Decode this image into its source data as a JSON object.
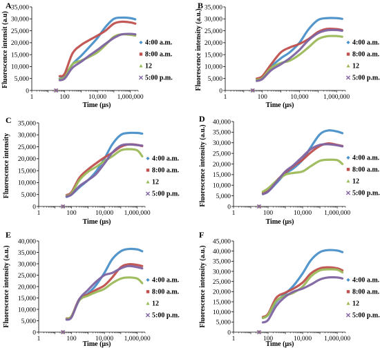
{
  "chart_data": [
    {
      "type": "line",
      "panel": "A",
      "xlabel": "Time (µs)",
      "ylabel": "Fluorescence intensit (a.u)",
      "xscale": "log",
      "xlim": [
        1,
        3000000
      ],
      "xticks": [
        1,
        100,
        10000,
        1000000
      ],
      "xtick_labels": [
        "1",
        "100",
        "10,000",
        "1,000,000"
      ],
      "ylim": [
        0,
        35000
      ],
      "ytick_step": 5000,
      "yticks": [
        "0",
        "5,000",
        "10,000",
        "15,000",
        "20,000",
        "25,000",
        "30,000",
        "35,000"
      ],
      "legend": "right",
      "series": [
        {
          "name": "4:00 a.m.",
          "color": "#4a90c9",
          "marker": "diamond",
          "x": [
            10,
            30,
            50,
            100,
            300,
            1000,
            3000,
            10000,
            30000,
            100000,
            300000,
            1000000,
            2000000
          ],
          "y": [
            0,
            0,
            5000,
            6000,
            11000,
            14500,
            18000,
            22000,
            26500,
            30000,
            30500,
            30300,
            29800
          ]
        },
        {
          "name": "8:00 a.m.",
          "color": "#c0504d",
          "marker": "square",
          "x": [
            10,
            30,
            50,
            100,
            300,
            1000,
            3000,
            10000,
            30000,
            100000,
            300000,
            1000000,
            2000000
          ],
          "y": [
            0,
            0,
            6000,
            7000,
            15500,
            19000,
            21000,
            23000,
            25000,
            28000,
            28800,
            28500,
            28000
          ]
        },
        {
          "name": "12",
          "color": "#9bbb59",
          "marker": "triangle",
          "x": [
            10,
            30,
            50,
            100,
            300,
            1000,
            3000,
            10000,
            30000,
            100000,
            300000,
            1000000,
            2000000
          ],
          "y": [
            0,
            0,
            4800,
            5500,
            11000,
            12500,
            14000,
            16000,
            19000,
            22500,
            23500,
            23300,
            23000
          ]
        },
        {
          "name": "5:00 p.m.",
          "color": "#8064a2",
          "marker": "cross",
          "x": [
            10,
            30,
            50,
            100,
            300,
            1000,
            3000,
            10000,
            30000,
            100000,
            300000,
            1000000,
            2000000
          ],
          "y": [
            0,
            0,
            4300,
            5000,
            9500,
            12000,
            14500,
            17000,
            19500,
            22000,
            23500,
            23700,
            23500
          ]
        }
      ]
    },
    {
      "type": "line",
      "panel": "B",
      "xlabel": "Time (µs)",
      "ylabel": "Fluorescence intensity (a.u.)",
      "xscale": "log",
      "xlim": [
        1,
        3000000
      ],
      "xticks": [
        1,
        100,
        10000,
        1000000
      ],
      "xtick_labels": [
        "1",
        "100",
        "10,000",
        "1,000,000"
      ],
      "ylim": [
        0,
        35000
      ],
      "ytick_step": 5000,
      "yticks": [
        "0",
        "5,000",
        "10,000",
        "15,000",
        "20,000",
        "25,000",
        "30,000",
        "35,000"
      ],
      "legend": "right",
      "series": [
        {
          "name": "4:00 a.m.",
          "color": "#4a90c9",
          "marker": "diamond",
          "x": [
            10,
            30,
            50,
            100,
            300,
            1000,
            3000,
            10000,
            30000,
            100000,
            300000,
            1000000,
            2000000
          ],
          "y": [
            0,
            0,
            4500,
            5500,
            10000,
            13500,
            16000,
            20000,
            25500,
            29500,
            30300,
            30300,
            30000
          ]
        },
        {
          "name": "8:00 a.m.",
          "color": "#c0504d",
          "marker": "square",
          "x": [
            10,
            30,
            50,
            100,
            300,
            1000,
            3000,
            10000,
            30000,
            100000,
            300000,
            1000000,
            2000000
          ],
          "y": [
            0,
            0,
            5000,
            6000,
            11000,
            16000,
            18000,
            19500,
            21500,
            24500,
            25800,
            25700,
            25300
          ]
        },
        {
          "name": "12",
          "color": "#9bbb59",
          "marker": "triangle",
          "x": [
            10,
            30,
            50,
            100,
            300,
            1000,
            3000,
            10000,
            30000,
            100000,
            300000,
            1000000,
            2000000
          ],
          "y": [
            0,
            0,
            4500,
            5200,
            9500,
            11500,
            12500,
            15000,
            18000,
            21500,
            22700,
            22800,
            22500
          ]
        },
        {
          "name": "5:00 p.m.",
          "color": "#8064a2",
          "marker": "cross",
          "x": [
            10,
            30,
            50,
            100,
            300,
            1000,
            3000,
            10000,
            30000,
            100000,
            300000,
            1000000,
            2000000
          ],
          "y": [
            0,
            0,
            4000,
            4800,
            8500,
            11000,
            13500,
            17000,
            21000,
            24000,
            25200,
            25300,
            25000
          ]
        }
      ]
    },
    {
      "type": "line",
      "panel": "C",
      "xlabel": "Time (µs)",
      "ylabel": "Fluorescence intensity",
      "xscale": "log",
      "xlim": [
        1,
        3000000
      ],
      "xticks": [
        1,
        100,
        10000,
        1000000
      ],
      "xtick_labels": [
        "1",
        "100",
        "10,000",
        "1,000,000"
      ],
      "ylim": [
        0,
        35000
      ],
      "ytick_step": 5000,
      "yticks": [
        "0",
        "5,000",
        "10,000",
        "15,000",
        "20,000",
        "25,000",
        "30,000",
        "35,000"
      ],
      "legend": "right",
      "series": [
        {
          "name": "4:00 a.m.",
          "color": "#4a90c9",
          "marker": "diamond",
          "x": [
            10,
            30,
            50,
            100,
            300,
            1000,
            3000,
            10000,
            30000,
            100000,
            300000,
            1000000,
            2000000
          ],
          "y": [
            0,
            0,
            4000,
            5000,
            8000,
            11000,
            14500,
            20000,
            26000,
            30000,
            30800,
            30800,
            30500
          ]
        },
        {
          "name": "8:00 a.m.",
          "color": "#c0504d",
          "marker": "square",
          "x": [
            10,
            30,
            50,
            100,
            300,
            1000,
            3000,
            10000,
            30000,
            100000,
            300000,
            1000000,
            2000000
          ],
          "y": [
            0,
            0,
            4800,
            6000,
            12000,
            15500,
            18000,
            20500,
            22500,
            25000,
            26000,
            25800,
            25300
          ]
        },
        {
          "name": "12",
          "color": "#9bbb59",
          "marker": "triangle",
          "x": [
            10,
            30,
            50,
            100,
            300,
            1000,
            3000,
            10000,
            30000,
            100000,
            300000,
            1000000,
            2000000
          ],
          "y": [
            0,
            0,
            4500,
            5500,
            11000,
            14500,
            16500,
            19000,
            21000,
            23500,
            24000,
            23500,
            21000
          ]
        },
        {
          "name": "5:00 p.m.",
          "color": "#8064a2",
          "marker": "cross",
          "x": [
            10,
            30,
            50,
            100,
            300,
            1000,
            3000,
            10000,
            30000,
            100000,
            300000,
            1000000,
            2000000
          ],
          "y": [
            0,
            0,
            4200,
            5000,
            8500,
            11000,
            13500,
            18000,
            22500,
            25500,
            26000,
            25700,
            25500
          ]
        }
      ]
    },
    {
      "type": "line",
      "panel": "D",
      "xlabel": "Time (µs)",
      "ylabel": "Fluorescence intensity (a.u.)",
      "xscale": "log",
      "xlim": [
        1,
        3000000
      ],
      "xticks": [
        1,
        100,
        10000,
        1000000
      ],
      "xtick_labels": [
        "1",
        "100",
        "10,000",
        "1,000,000"
      ],
      "ylim": [
        0,
        40000
      ],
      "ytick_step": 5000,
      "yticks": [
        "0",
        "5,000",
        "10,000",
        "15,000",
        "20,000",
        "25,000",
        "30,000",
        "35,000",
        "40,000"
      ],
      "legend": "right",
      "series": [
        {
          "name": "4:00 a.m.",
          "color": "#4a90c9",
          "marker": "diamond",
          "x": [
            10,
            30,
            50,
            100,
            300,
            1000,
            3000,
            10000,
            30000,
            100000,
            300000,
            1000000,
            2000000
          ],
          "y": [
            0,
            0,
            6000,
            7000,
            11000,
            15500,
            18000,
            22000,
            28000,
            34000,
            35800,
            35300,
            34500
          ]
        },
        {
          "name": "8:00 a.m.",
          "color": "#c0504d",
          "marker": "square",
          "x": [
            10,
            30,
            50,
            100,
            300,
            1000,
            3000,
            10000,
            30000,
            100000,
            300000,
            1000000,
            2000000
          ],
          "y": [
            0,
            0,
            6500,
            7500,
            12000,
            16000,
            19000,
            22000,
            25500,
            28500,
            29700,
            29000,
            28500
          ]
        },
        {
          "name": "12",
          "color": "#9bbb59",
          "marker": "triangle",
          "x": [
            10,
            30,
            50,
            100,
            300,
            1000,
            3000,
            10000,
            30000,
            100000,
            300000,
            1000000,
            2000000
          ],
          "y": [
            0,
            0,
            7000,
            8500,
            12000,
            15000,
            15800,
            16500,
            19000,
            21500,
            22000,
            21800,
            20000
          ]
        },
        {
          "name": "5:00 p.m.",
          "color": "#8064a2",
          "marker": "cross",
          "x": [
            10,
            30,
            50,
            100,
            300,
            1000,
            3000,
            10000,
            30000,
            100000,
            300000,
            1000000,
            2000000
          ],
          "y": [
            0,
            0,
            5800,
            7000,
            11500,
            16500,
            19500,
            23500,
            27000,
            29000,
            29300,
            28800,
            28300
          ]
        }
      ]
    },
    {
      "type": "line",
      "panel": "E",
      "xlabel": "Time (µs)",
      "ylabel": "Fluorescence intensity (a.u.)",
      "xscale": "log",
      "xlim": [
        1,
        3000000
      ],
      "xticks": [
        1,
        100,
        10000,
        1000000
      ],
      "xtick_labels": [
        "1",
        "100",
        "10,000",
        "1,000,000"
      ],
      "ylim": [
        0,
        40000
      ],
      "ytick_step": 5000,
      "yticks": [
        "0",
        "5,000",
        "10,000",
        "15,000",
        "20,000",
        "25,000",
        "30,000",
        "35,000",
        "40,000"
      ],
      "legend": "right",
      "series": [
        {
          "name": "4:00 a.m.",
          "color": "#4a90c9",
          "marker": "diamond",
          "x": [
            10,
            30,
            50,
            100,
            300,
            1000,
            3000,
            10000,
            30000,
            100000,
            300000,
            1000000,
            2000000
          ],
          "y": [
            0,
            0,
            5500,
            7000,
            14000,
            17000,
            20500,
            26000,
            32000,
            35500,
            36500,
            36300,
            35500
          ]
        },
        {
          "name": "8:00 a.m.",
          "color": "#c0504d",
          "marker": "square",
          "x": [
            10,
            30,
            50,
            100,
            300,
            1000,
            3000,
            10000,
            30000,
            100000,
            300000,
            1000000,
            2000000
          ],
          "y": [
            0,
            0,
            6000,
            7000,
            14500,
            16500,
            18500,
            20500,
            24000,
            28500,
            29800,
            29500,
            29000
          ]
        },
        {
          "name": "12",
          "color": "#9bbb59",
          "marker": "triangle",
          "x": [
            10,
            30,
            50,
            100,
            300,
            1000,
            3000,
            10000,
            30000,
            100000,
            300000,
            1000000,
            2000000
          ],
          "y": [
            0,
            0,
            5800,
            7000,
            14000,
            16000,
            17500,
            19000,
            21500,
            23500,
            24000,
            23500,
            21500
          ]
        },
        {
          "name": "5:00 p.m.",
          "color": "#8064a2",
          "marker": "cross",
          "x": [
            10,
            30,
            50,
            100,
            300,
            1000,
            3000,
            10000,
            30000,
            100000,
            300000,
            1000000,
            2000000
          ],
          "y": [
            0,
            0,
            5500,
            6500,
            14500,
            18500,
            22000,
            25000,
            26000,
            28000,
            29000,
            28500,
            28000
          ]
        }
      ]
    },
    {
      "type": "line",
      "panel": "F",
      "xlabel": "Time (µs)",
      "ylabel": "Fluorescence intensity (a.u.)",
      "xscale": "log",
      "xlim": [
        1,
        3000000
      ],
      "xticks": [
        1,
        100,
        10000,
        1000000
      ],
      "xtick_labels": [
        "1",
        "100",
        "10,000",
        "1,000,000"
      ],
      "ylim": [
        0,
        45000
      ],
      "ytick_step": 5000,
      "yticks": [
        "0",
        "5,000",
        "10,000",
        "15,000",
        "20,000",
        "25,000",
        "30,000",
        "35,000",
        "40,000",
        "45,000"
      ],
      "legend": "right",
      "series": [
        {
          "name": "4:00 a.m.",
          "color": "#4a90c9",
          "marker": "diamond",
          "x": [
            10,
            30,
            50,
            100,
            300,
            1000,
            3000,
            10000,
            30000,
            100000,
            300000,
            1000000,
            2000000
          ],
          "y": [
            0,
            0,
            7000,
            8500,
            15000,
            19000,
            23000,
            29000,
            35500,
            39500,
            40500,
            40300,
            39500
          ]
        },
        {
          "name": "8:00 a.m.",
          "color": "#c0504d",
          "marker": "square",
          "x": [
            10,
            30,
            50,
            100,
            300,
            1000,
            3000,
            10000,
            30000,
            100000,
            300000,
            1000000,
            2000000
          ],
          "y": [
            0,
            0,
            7500,
            9000,
            17000,
            19500,
            21500,
            24500,
            29000,
            31500,
            32000,
            31500,
            30500
          ]
        },
        {
          "name": "12",
          "color": "#9bbb59",
          "marker": "triangle",
          "x": [
            10,
            30,
            50,
            100,
            300,
            1000,
            3000,
            10000,
            30000,
            100000,
            300000,
            1000000,
            2000000
          ],
          "y": [
            0,
            0,
            7000,
            8500,
            15500,
            18000,
            19500,
            22500,
            27500,
            30500,
            31000,
            30800,
            29500
          ]
        },
        {
          "name": "5:00 p.m.",
          "color": "#8064a2",
          "marker": "cross",
          "x": [
            10,
            30,
            50,
            100,
            300,
            1000,
            3000,
            10000,
            30000,
            100000,
            300000,
            1000000,
            2000000
          ],
          "y": [
            0,
            0,
            4800,
            6000,
            13000,
            17500,
            20000,
            21500,
            23500,
            26000,
            27000,
            27000,
            26500
          ]
        }
      ]
    }
  ]
}
